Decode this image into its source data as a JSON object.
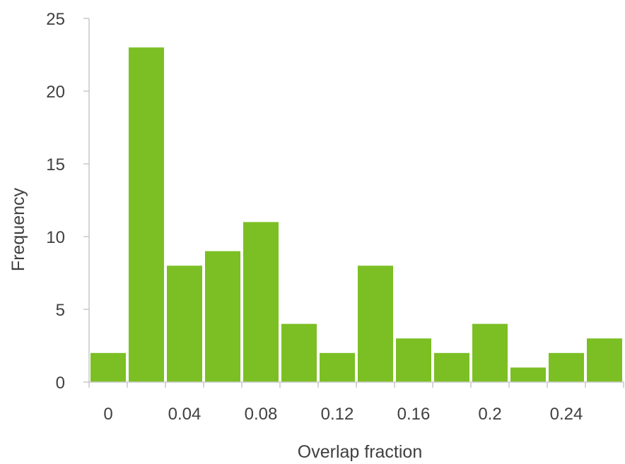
{
  "chart_data": {
    "type": "bar",
    "title": "",
    "xlabel": "Overlap fraction",
    "ylabel": "Frequency",
    "categories": [
      "0",
      "0.02",
      "0.04",
      "0.06",
      "0.08",
      "0.1",
      "0.12",
      "0.14",
      "0.16",
      "0.18",
      "0.2",
      "0.22",
      "0.24",
      "0.26"
    ],
    "values": [
      2,
      23,
      8,
      9,
      11,
      4,
      2,
      8,
      3,
      2,
      4,
      1,
      2,
      3
    ],
    "ylim": [
      0,
      25
    ],
    "yticks": [
      "0",
      "5",
      "10",
      "15",
      "20",
      "25"
    ],
    "xtick_labels": [
      "0",
      "0.04",
      "0.08",
      "0.12",
      "0.16",
      "0.2",
      "0.24"
    ],
    "bar_color": "#7bbf24",
    "grid": false,
    "legend": "none"
  }
}
